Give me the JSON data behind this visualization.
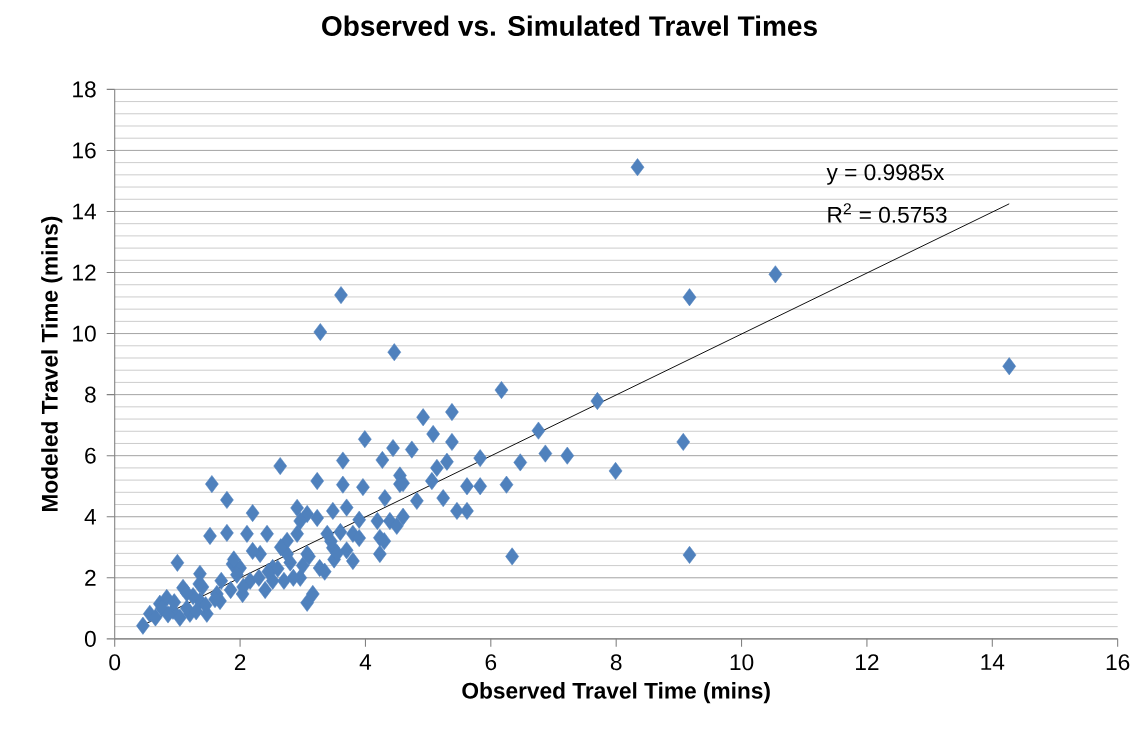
{
  "chart_data": {
    "type": "scatter",
    "title": "Observed vs. Simulated Travel Times",
    "xlabel": "Observed Travel Time (mins)",
    "ylabel": "Modeled Travel Time (mins)",
    "xlim": [
      0,
      16
    ],
    "ylim": [
      0,
      18
    ],
    "xticks": [
      0,
      2,
      4,
      6,
      8,
      10,
      12,
      14,
      16
    ],
    "yticks": [
      0,
      2,
      4,
      6,
      8,
      10,
      12,
      14,
      16,
      18
    ],
    "grid": "y",
    "annotations": [
      "y = 0.9985x",
      "R$^{2}$ = 0.5753"
    ],
    "series": [
      {
        "marker": "diamond",
        "color": "#4f81bd",
        "x": [
          8.34,
          10.54,
          9.17,
          14.27,
          3.61,
          3.28,
          4.46,
          6.17,
          7.7,
          9.07,
          9.17,
          6.34,
          4.92,
          5.38,
          5.08,
          5.38,
          3.99,
          4.44,
          4.74,
          3.64,
          4.27,
          5.14,
          5.3,
          5.83,
          6.76,
          6.47,
          6.87,
          7.22,
          7.99,
          6.25,
          5.83,
          5.62,
          3.23,
          3.64,
          3.96,
          4.31,
          4.55,
          5.06,
          5.24,
          5.46,
          5.62,
          4.82,
          2.64,
          1.55,
          1.79,
          2.2,
          2.91,
          3.07,
          3.48,
          1.52,
          1.79,
          2.11,
          2.43,
          2.91,
          4.23,
          4.39,
          1.0,
          3.16,
          3.07,
          0.45,
          4.23,
          2.32,
          2.75,
          3.48,
          3.8,
          1.88,
          1.36,
          0.83,
          1.09,
          0.72,
          1.2,
          1.63,
          2.16,
          2.52,
          2.96,
          3.27,
          1.68,
          2.04,
          2.52,
          2.2,
          3.07,
          3.39,
          3.8,
          4.19,
          0.56,
          0.93,
          1.36,
          1.04,
          1.47,
          2.0,
          2.75,
          2.96,
          3.23,
          4.5,
          4.6,
          4.3,
          4.55,
          4.6,
          3.9,
          3.7,
          3.5,
          3.6,
          3.9,
          3.7,
          0.65,
          0.75,
          0.85,
          0.95,
          1.15,
          1.25,
          1.3,
          1.4,
          1.45,
          1.6,
          1.7,
          1.85,
          1.95,
          2.05,
          2.3,
          2.4,
          2.6,
          2.7,
          2.8,
          2.85,
          3.0,
          3.1,
          3.35,
          3.45,
          3.55,
          1.15,
          1.35,
          1.9,
          2.45,
          2.65
        ],
        "values": [
          15.45,
          11.94,
          11.19,
          8.93,
          11.26,
          10.05,
          9.39,
          8.15,
          7.79,
          6.45,
          2.75,
          2.7,
          7.26,
          7.43,
          6.71,
          6.45,
          6.54,
          6.25,
          6.2,
          5.84,
          5.86,
          5.6,
          5.8,
          5.92,
          6.82,
          5.78,
          6.07,
          6.0,
          5.5,
          5.05,
          5.0,
          5.0,
          5.17,
          5.05,
          4.97,
          4.61,
          5.07,
          5.17,
          4.61,
          4.19,
          4.19,
          4.52,
          5.66,
          5.07,
          4.55,
          4.12,
          4.29,
          4.09,
          4.19,
          3.37,
          3.47,
          3.44,
          3.44,
          3.44,
          3.31,
          3.86,
          2.49,
          1.47,
          1.18,
          0.43,
          2.78,
          2.78,
          2.78,
          2.98,
          2.55,
          2.45,
          2.13,
          1.34,
          1.67,
          1.15,
          0.82,
          1.47,
          1.9,
          1.9,
          2.0,
          2.32,
          1.24,
          1.47,
          2.32,
          2.88,
          2.78,
          3.44,
          3.44,
          3.86,
          0.82,
          0.92,
          1.24,
          0.69,
          0.82,
          2.32,
          3.21,
          3.86,
          3.96,
          3.7,
          4.0,
          3.2,
          5.35,
          5.1,
          3.3,
          2.9,
          2.6,
          3.5,
          3.9,
          4.3,
          0.7,
          1.0,
          0.8,
          1.2,
          1.0,
          1.4,
          0.9,
          1.7,
          1.1,
          1.3,
          1.9,
          1.6,
          2.1,
          1.7,
          2.0,
          1.6,
          2.3,
          1.9,
          2.5,
          2.0,
          2.4,
          2.7,
          2.2,
          3.2,
          2.8,
          1.5,
          1.8,
          2.6,
          2.2,
          3.0
        ]
      },
      {
        "type": "line",
        "color": "#000000",
        "x": [
          0.5,
          14.27
        ],
        "values": [
          0.5,
          14.25
        ]
      }
    ]
  }
}
